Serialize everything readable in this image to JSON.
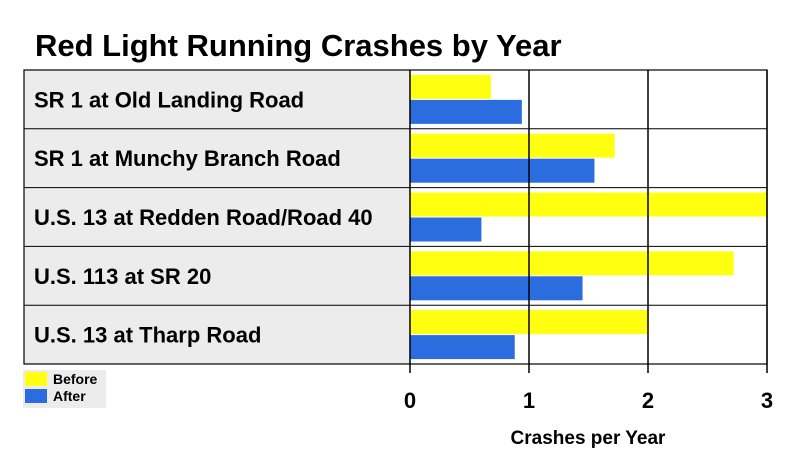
{
  "chart_data": {
    "type": "bar",
    "orientation": "horizontal",
    "title": "Red Light Running Crashes by Year",
    "xlabel": "Crashes per Year",
    "ylabel": "",
    "xlim": [
      0,
      3
    ],
    "xticks": [
      0,
      1,
      2,
      3
    ],
    "grid": "vertical",
    "legend_position": "bottom-left",
    "categories": [
      "SR 1 at Old Landing Road",
      "SR 1 at Munchy Branch Road",
      "U.S. 13 at Redden Road/Road 40",
      "U.S. 113 at SR 20",
      "U.S. 13 at Tharp Road"
    ],
    "series": [
      {
        "name": "Before",
        "color": "#ffff0f",
        "values": [
          0.68,
          1.72,
          3.0,
          2.72,
          2.0
        ]
      },
      {
        "name": "After",
        "color": "#2b6ddf",
        "values": [
          0.94,
          1.55,
          0.6,
          1.45,
          0.88
        ]
      }
    ]
  },
  "colors": {
    "label_panel": "#ececec",
    "border": "#000000",
    "grid": "#000000"
  }
}
